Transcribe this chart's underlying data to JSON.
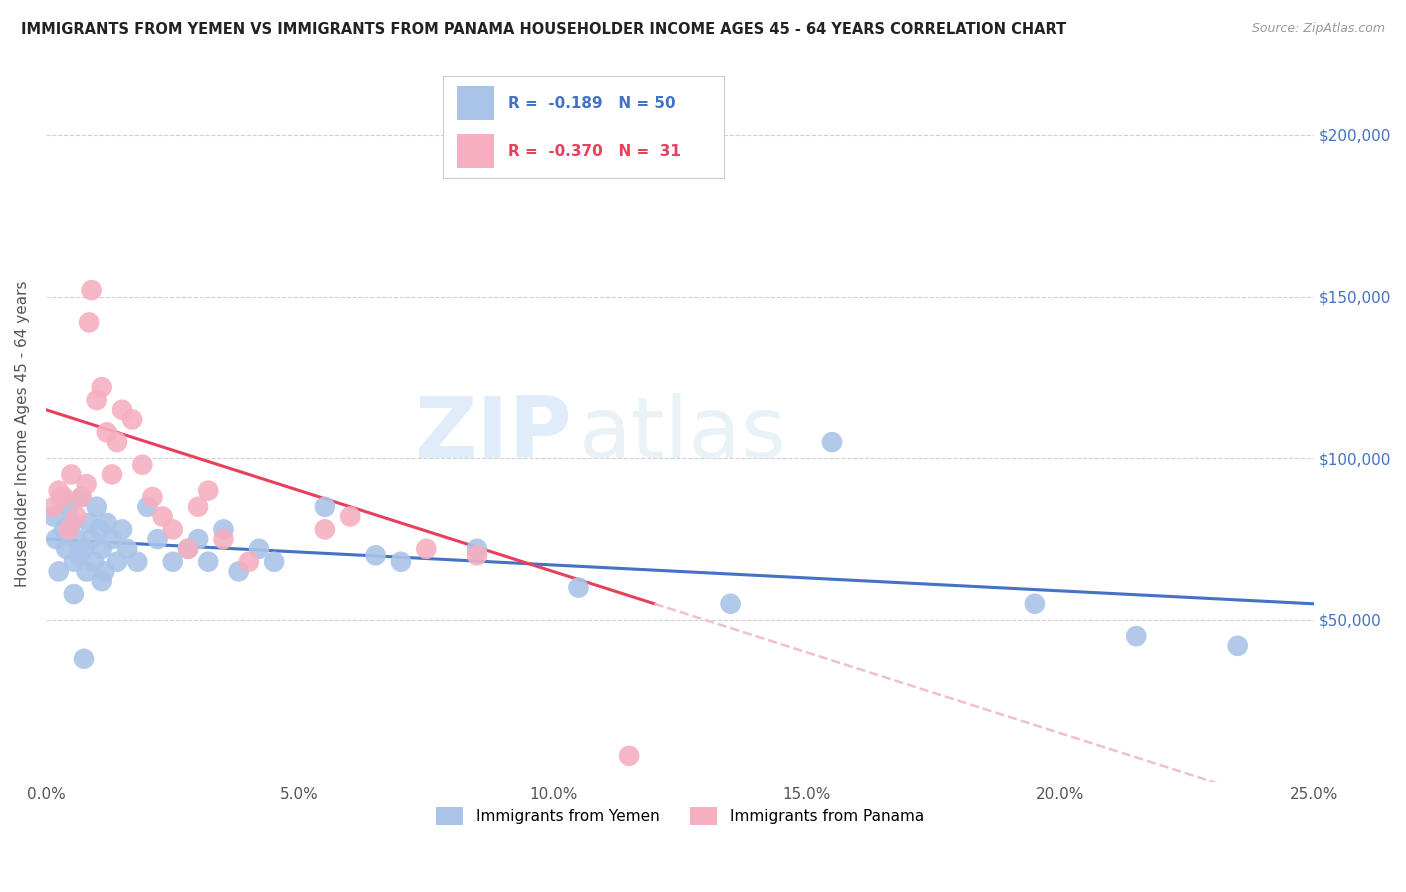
{
  "title": "IMMIGRANTS FROM YEMEN VS IMMIGRANTS FROM PANAMA HOUSEHOLDER INCOME AGES 45 - 64 YEARS CORRELATION CHART",
  "source": "Source: ZipAtlas.com",
  "ylabel": "Householder Income Ages 45 - 64 years",
  "xlabel_ticks": [
    "0.0%",
    "5.0%",
    "10.0%",
    "15.0%",
    "20.0%",
    "25.0%"
  ],
  "xlabel_values": [
    0.0,
    5.0,
    10.0,
    15.0,
    20.0,
    25.0
  ],
  "ylabel_ticks": [
    "$50,000",
    "$100,000",
    "$150,000",
    "$200,000"
  ],
  "ylabel_values": [
    50000,
    100000,
    150000,
    200000
  ],
  "xlim": [
    0.0,
    25.0
  ],
  "ylim": [
    0,
    215000
  ],
  "watermark_zip": "ZIP",
  "watermark_atlas": "atlas",
  "legend_blue_r": "-0.189",
  "legend_blue_n": "50",
  "legend_pink_r": "-0.370",
  "legend_pink_n": "31",
  "blue_color": "#aac4e8",
  "pink_color": "#f5afc0",
  "trendline_blue": "#4472c4",
  "trendline_pink": "#e8405a",
  "trendline_dashed_color": "#f0c0cc",
  "yemen_x": [
    0.15,
    0.2,
    0.3,
    0.35,
    0.4,
    0.45,
    0.5,
    0.55,
    0.6,
    0.65,
    0.7,
    0.75,
    0.8,
    0.85,
    0.9,
    0.95,
    1.0,
    1.05,
    1.1,
    1.15,
    1.2,
    1.3,
    1.4,
    1.5,
    1.6,
    1.8,
    2.0,
    2.2,
    2.5,
    2.8,
    3.0,
    3.2,
    3.5,
    3.8,
    4.2,
    4.5,
    5.5,
    6.5,
    7.0,
    8.5,
    10.5,
    13.5,
    15.5,
    19.5,
    21.5,
    23.5,
    0.25,
    0.55,
    0.75,
    1.1
  ],
  "yemen_y": [
    82000,
    75000,
    88000,
    78000,
    72000,
    85000,
    80000,
    68000,
    75000,
    70000,
    88000,
    72000,
    65000,
    80000,
    75000,
    68000,
    85000,
    78000,
    72000,
    65000,
    80000,
    75000,
    68000,
    78000,
    72000,
    68000,
    85000,
    75000,
    68000,
    72000,
    75000,
    68000,
    78000,
    65000,
    72000,
    68000,
    85000,
    70000,
    68000,
    72000,
    60000,
    55000,
    105000,
    55000,
    45000,
    42000,
    65000,
    58000,
    38000,
    62000
  ],
  "panama_x": [
    0.15,
    0.25,
    0.35,
    0.45,
    0.5,
    0.6,
    0.7,
    0.8,
    0.85,
    0.9,
    1.0,
    1.1,
    1.2,
    1.3,
    1.4,
    1.5,
    1.7,
    1.9,
    2.1,
    2.3,
    2.5,
    2.8,
    3.0,
    3.2,
    3.5,
    4.0,
    5.5,
    6.0,
    7.5,
    8.5,
    11.5
  ],
  "panama_y": [
    85000,
    90000,
    88000,
    78000,
    95000,
    82000,
    88000,
    92000,
    142000,
    152000,
    118000,
    122000,
    108000,
    95000,
    105000,
    115000,
    112000,
    98000,
    88000,
    82000,
    78000,
    72000,
    85000,
    90000,
    75000,
    68000,
    78000,
    82000,
    72000,
    70000,
    8000
  ]
}
